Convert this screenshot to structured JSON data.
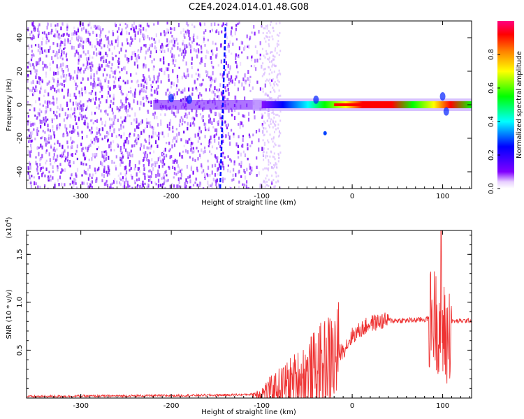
{
  "title": "C2E4.2024.014.01.48.G08",
  "chart_data": [
    {
      "type": "heatmap",
      "xlabel": "Height of straight line (km)",
      "ylabel": "Frequency (Hz)",
      "xlim": [
        -360,
        132
      ],
      "ylim": [
        -50,
        50
      ],
      "x_ticks": [
        -300,
        -200,
        -100,
        0,
        100
      ],
      "y_ticks": [
        -40,
        -20,
        0,
        20,
        40
      ],
      "colorbar": {
        "label": "Normalized spectral amplitude",
        "range": [
          0,
          1
        ],
        "ticks": [
          "0.0",
          "0.2",
          "0.4",
          "0.6",
          "0.8"
        ],
        "tick_values": [
          0.0,
          0.2,
          0.4,
          0.6,
          0.8
        ]
      },
      "features": [
        {
          "name": "noise_region",
          "x_range": [
            -360,
            -95
          ],
          "frequency_range": [
            -50,
            50
          ]
        },
        {
          "name": "main_ridge",
          "x_range": [
            -100,
            132
          ],
          "frequency": 0,
          "peak_amplitude": 1.0,
          "peak_x_range": [
            -20,
            25
          ]
        },
        {
          "name": "diagonal_streak",
          "x_start": -146,
          "x_end": -140,
          "frequency_range": [
            -50,
            48
          ]
        }
      ]
    },
    {
      "type": "line",
      "xlabel": "Height of straight line (km)",
      "ylabel": "SNR (10 * v/v)",
      "y_multiplier": "(x10^4)",
      "xlim": [
        -360,
        132
      ],
      "ylim": [
        0,
        17500
      ],
      "x_ticks": [
        -300,
        -200,
        -100,
        0,
        100
      ],
      "y_ticks": [
        5000,
        10000,
        15000
      ],
      "y_tick_labels": [
        "0.5",
        "1.0",
        "1.5"
      ],
      "series": [
        {
          "color": "#ee3333",
          "x": [
            -360,
            -300,
            -200,
            -150,
            -120,
            -100,
            -80,
            -60,
            -40,
            -25,
            -10,
            0,
            20,
            40,
            60,
            80,
            90,
            95,
            100,
            105,
            110,
            132
          ],
          "y": [
            150,
            200,
            250,
            300,
            350,
            450,
            1200,
            2000,
            3000,
            4000,
            5000,
            6500,
            7800,
            8100,
            8100,
            8200,
            8400,
            8000,
            7000,
            6000,
            8000,
            8100
          ]
        }
      ]
    }
  ]
}
